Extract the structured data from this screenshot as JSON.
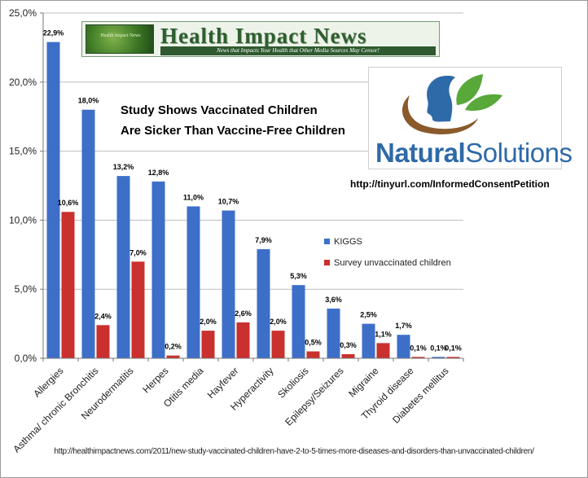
{
  "chart_data": {
    "type": "bar",
    "categories": [
      "Allergies",
      "Asthma/ chronic Bronchitis",
      "Neurodermatitis",
      "Herpes",
      "Otitis media",
      "Hayfever",
      "Hyperactivity",
      "Skoliosis",
      "Epilepsy/Seizures",
      "Migraine",
      "Thyroid disease",
      "Diabetes mellitus"
    ],
    "series": [
      {
        "name": "KIGGS",
        "color": "#3d6fc9",
        "values": [
          22.9,
          18.0,
          13.2,
          12.8,
          11.0,
          10.7,
          7.9,
          5.3,
          3.6,
          2.5,
          1.7,
          0.1
        ],
        "labels": [
          "22,9%",
          "18,0%",
          "13,2%",
          "12,8%",
          "11,0%",
          "10,7%",
          "7,9%",
          "5,3%",
          "3,6%",
          "2,5%",
          "1,7%",
          "0,1%"
        ]
      },
      {
        "name": "Survey unvaccinated children",
        "color": "#c9302e",
        "values": [
          10.6,
          2.4,
          7.0,
          0.2,
          2.0,
          2.6,
          2.0,
          0.5,
          0.3,
          1.1,
          0.1,
          0.1
        ],
        "labels": [
          "10,6%",
          "2,4%",
          "7,0%",
          "0,2%",
          "2,0%",
          "2,6%",
          "2,0%",
          "0,5%",
          "0,3%",
          "1,1%",
          "0,1%",
          "0,1%"
        ]
      }
    ],
    "ylim": [
      0,
      25
    ],
    "y_ticks": [
      0,
      5,
      10,
      15,
      20,
      25
    ],
    "y_tick_labels": [
      "0,0%",
      "5,0%",
      "10,0%",
      "15,0%",
      "20,0%",
      "25,0%"
    ],
    "grid": true,
    "legend_position": "right"
  },
  "banner": {
    "title": "Health Impact News",
    "tagline": "News that Impacts Your Health that Other Media Sources May Censor!",
    "logo_text": "Health Impact News"
  },
  "headline": {
    "line1": "Study Shows Vaccinated Children",
    "line2": "Are Sicker Than Vaccine-Free Children"
  },
  "natural_solutions": {
    "part1": "Natural",
    "part2": "Solutions",
    "colors": {
      "head": "#2e6aa8",
      "hands": "#8a5a2a",
      "leaf": "#58a83a"
    }
  },
  "petition_url": "http://tinyurl.com/InformedConsentPetition",
  "source_url": "http://healthimpactnews.com/2011/new-study-vaccinated-children-have-2-to-5-times-more-diseases-and-disorders-than-unvaccinated-children/"
}
